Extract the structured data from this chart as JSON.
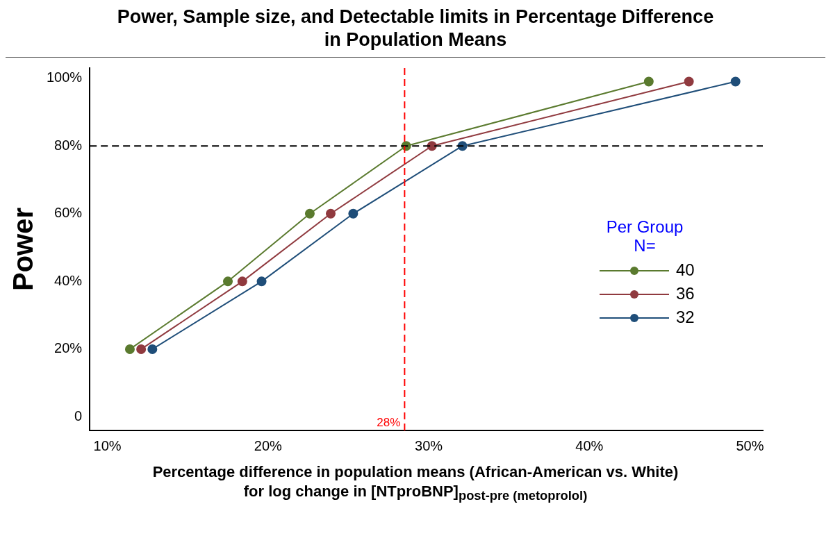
{
  "chart_data": {
    "type": "line",
    "title": "Power, Sample size, and Detectable limits in Percentage Difference\nin Population Means",
    "xlabel": "Percentage difference in population means (African-American vs. White)\nfor log change in [NTproBNP]$_{post-pre  (metoprolol)}$",
    "ylabel": "Power",
    "legend_title": "Per Group\nN=",
    "legend": "right",
    "marker": "circle",
    "line_style": "solid",
    "grid": false,
    "xlim": [
      8.9,
      50.8
    ],
    "ylim": [
      -4,
      103
    ],
    "xticks": [
      {
        "value": 10,
        "label": "10%"
      },
      {
        "value": 20,
        "label": "20%"
      },
      {
        "value": 30,
        "label": "30%"
      },
      {
        "value": 40,
        "label": "40%"
      },
      {
        "value": 50,
        "label": "50%"
      }
    ],
    "yticks": [
      0,
      {
        "value": 20,
        "label": "20%"
      },
      {
        "value": 40,
        "label": "40%"
      },
      {
        "value": 60,
        "label": "60%"
      },
      {
        "value": 80,
        "label": "80%"
      },
      {
        "value": 100,
        "label": "100%"
      }
    ],
    "ref_lines": [
      {
        "axis": "y",
        "value": 80,
        "color": "#000000",
        "line_style": "dashed"
      },
      {
        "axis": "x",
        "value": 28.5,
        "label": "28%",
        "color": "#ff0000",
        "line_style": "dashed"
      }
    ],
    "series": [
      {
        "name": "40",
        "color": "#5a7a2e",
        "x": [
          11.4,
          17.5,
          22.6,
          28.6,
          43.7
        ],
        "values": [
          20,
          40,
          60,
          80,
          99
        ]
      },
      {
        "name": "36",
        "color": "#903a3f",
        "x": [
          12.1,
          18.4,
          23.9,
          30.2,
          46.2
        ],
        "values": [
          20,
          40,
          60,
          80,
          99
        ]
      },
      {
        "name": "32",
        "color": "#1f4e79",
        "x": [
          12.8,
          19.6,
          25.3,
          32.1,
          49.1
        ],
        "values": [
          20,
          40,
          60,
          80,
          99
        ]
      }
    ]
  }
}
